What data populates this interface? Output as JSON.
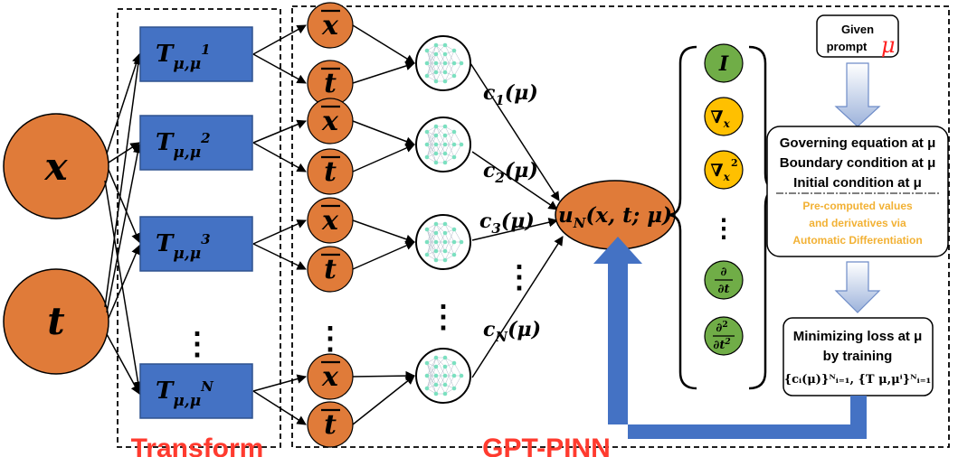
{
  "inputs": {
    "x": "x",
    "t": "t"
  },
  "transform": {
    "label": "Transform",
    "blocks": [
      {
        "base": "T",
        "sub": "μ,μ",
        "sup": "1"
      },
      {
        "base": "T",
        "sub": "μ,μ",
        "sup": "2"
      },
      {
        "base": "T",
        "sub": "μ,μ",
        "sup": "3"
      },
      {
        "base": "T",
        "sub": "μ,μ",
        "sup": "N"
      }
    ],
    "ellipsis": "⋮"
  },
  "gptpinn": {
    "label": "GPT-PINN",
    "xbar": "x",
    "tbar": "t",
    "coeffs": [
      {
        "c": "c",
        "sub": "1",
        "arg": "(μ)"
      },
      {
        "c": "c",
        "sub": "2",
        "arg": "(μ)"
      },
      {
        "c": "c",
        "sub": "3",
        "arg": "(μ)"
      },
      {
        "c": "c",
        "sub": "N",
        "arg": "(μ)"
      }
    ],
    "ellipsis": "⋮"
  },
  "output": {
    "u": "u",
    "sub": "N",
    "args": "(x, t; μ)"
  },
  "operators": {
    "identity": "I",
    "grad_x": "∇",
    "grad_x_sub": "x",
    "grad_x2": "∇",
    "grad_x2_sub": "x",
    "grad_x2_sup": "2",
    "ellipsis": "⋮",
    "dt_num": "∂",
    "dt_den": "∂t",
    "dt2_num": "∂",
    "dt2_num_sup": "2",
    "dt2_den": "∂t",
    "dt2_den_sup": "2"
  },
  "right_panel": {
    "prompt_line1": "Given",
    "prompt_line2": "prompt",
    "prompt_mu": "μ",
    "conditions": [
      "Governing equation at μ",
      "Boundary condition at μ",
      "Initial condition at μ"
    ],
    "precomputed": [
      "Pre-computed values",
      "and derivatives via",
      "Automatic Differentiation"
    ],
    "loss_line1": "Minimizing loss at μ",
    "loss_line2": "by training",
    "loss_formula": "{cᵢ(μ)}ᴺᵢ₌₁, {T μ,μⁱ}ᴺᵢ₌₁"
  },
  "colors": {
    "orange": "#E07B39",
    "blue": "#4472C4",
    "green": "#70AD47",
    "yellow": "#FFC000",
    "red_label": "#FF3B2F",
    "mu_red": "#FF2020",
    "arrow_blue": "#4472C4",
    "precomp_text": "#F2B134"
  }
}
